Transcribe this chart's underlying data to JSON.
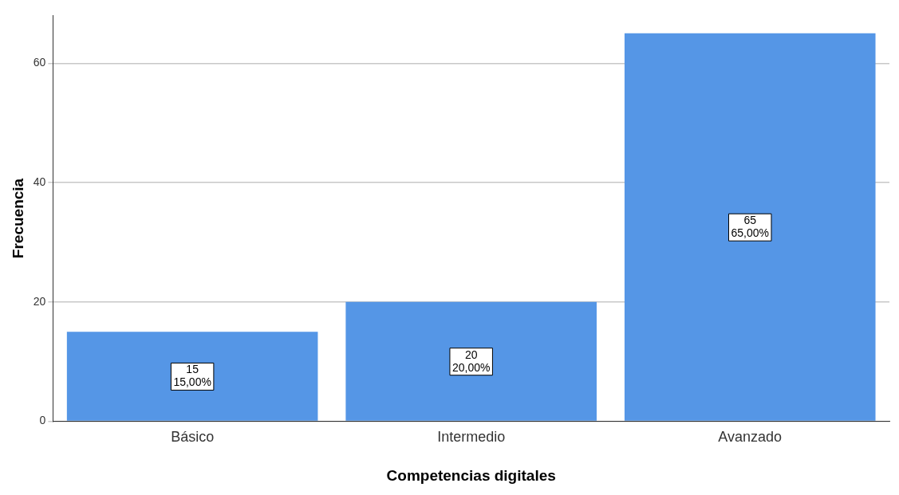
{
  "chart_data": {
    "type": "bar",
    "xlabel": "Competencias digitales",
    "ylabel": "Frecuencia",
    "categories": [
      "Básico",
      "Intermedio",
      "Avanzado"
    ],
    "values": [
      15,
      20,
      65
    ],
    "color": "#5596e6",
    "value_labels": [
      "15\n15,00%",
      "20\n20,00%",
      "65\n65,00%"
    ],
    "ylim": [
      0,
      68
    ],
    "yticks": [
      0,
      20,
      40,
      60
    ],
    "grid": "y",
    "legend": false
  }
}
